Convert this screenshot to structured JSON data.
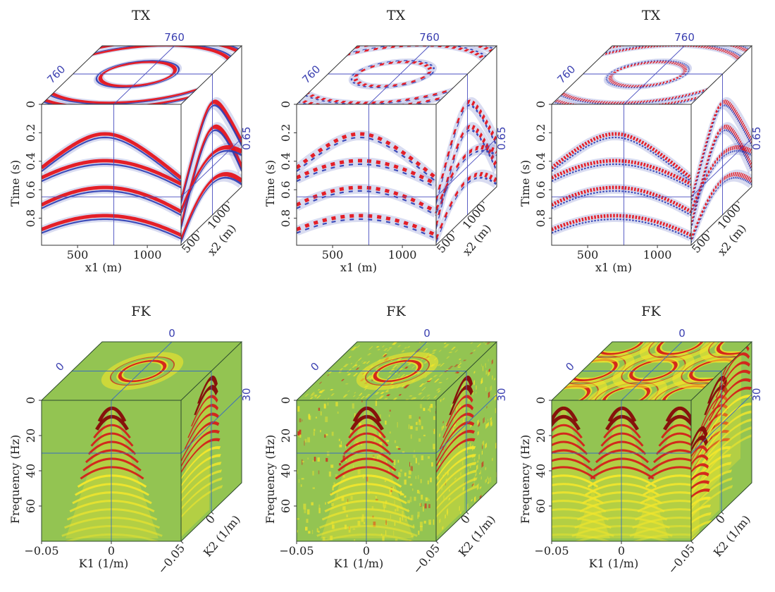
{
  "colors": {
    "tx_red": "#e5141c",
    "tx_blue": "#2c3cb2",
    "fk_green": "#93c452",
    "fk_yellow": "#f2e62c",
    "fk_red": "#d4201a",
    "fk_darkred": "#860808",
    "slice_tx": "#4a4fc0",
    "slice_fk": "#3a6cc0"
  },
  "chart_data": [
    {
      "type": "heatmap",
      "domain": "TX",
      "title": "TX",
      "xlabel": "x1 (m)",
      "ylabel": "Time (s)",
      "zlabel": "x2 (m)",
      "xlim": [
        242,
        1242
      ],
      "ylim": [
        0,
        0.99
      ],
      "zlim": [
        242,
        1242
      ],
      "xticks": [
        "500",
        "1000"
      ],
      "xtick_values": [
        500,
        1000
      ],
      "yticks": [
        "0",
        "0.2",
        "0.4",
        "0.6",
        "0.8"
      ],
      "ytick_values": [
        0,
        0.2,
        0.4,
        0.6,
        0.8
      ],
      "zticks": [
        "500",
        "1000"
      ],
      "ztick_values": [
        500,
        1000
      ],
      "slices": {
        "x1": 760,
        "x2": 760,
        "t": 0.65
      },
      "slice_labels": [
        "760",
        "760",
        "0.65"
      ],
      "variant": "clean"
    },
    {
      "type": "heatmap",
      "domain": "TX",
      "title": "TX",
      "xlabel": "x1 (m)",
      "ylabel": "Time (s)",
      "zlabel": "x2 (m)",
      "xlim": [
        242,
        1242
      ],
      "ylim": [
        0,
        0.99
      ],
      "zlim": [
        242,
        1242
      ],
      "xticks": [
        "500",
        "1000"
      ],
      "xtick_values": [
        500,
        1000
      ],
      "yticks": [
        "0",
        "0.2",
        "0.4",
        "0.6",
        "0.8"
      ],
      "ytick_values": [
        0,
        0.2,
        0.4,
        0.6,
        0.8
      ],
      "zticks": [
        "500",
        "1000"
      ],
      "ztick_values": [
        500,
        1000
      ],
      "slices": {
        "x1": 760,
        "x2": 760,
        "t": 0.65
      },
      "slice_labels": [
        "760",
        "760",
        "0.65"
      ],
      "variant": "decimated"
    },
    {
      "type": "heatmap",
      "domain": "TX",
      "title": "TX",
      "xlabel": "x1 (m)",
      "ylabel": "Time (s)",
      "zlabel": "x2 (m)",
      "xlim": [
        242,
        1242
      ],
      "ylim": [
        0,
        0.99
      ],
      "zlim": [
        242,
        1242
      ],
      "xticks": [
        "500",
        "1000"
      ],
      "xtick_values": [
        500,
        1000
      ],
      "yticks": [
        "0",
        "0.2",
        "0.4",
        "0.6",
        "0.8"
      ],
      "ytick_values": [
        0,
        0.2,
        0.4,
        0.6,
        0.8
      ],
      "zticks": [
        "500",
        "1000"
      ],
      "ztick_values": [
        500,
        1000
      ],
      "slices": {
        "x1": 760,
        "x2": 760,
        "t": 0.65
      },
      "slice_labels": [
        "760",
        "760",
        "0.65"
      ],
      "variant": "regular"
    },
    {
      "type": "heatmap",
      "domain": "FK",
      "title": "FK",
      "xlabel": "K1 (1/m)",
      "ylabel": "Frequency (Hz)",
      "zlabel": "K2 (1/m)",
      "xlim": [
        -0.05,
        0.05
      ],
      "ylim": [
        0,
        80
      ],
      "zlim": [
        -0.05,
        0.05
      ],
      "xticks": [
        "−0.05",
        "0"
      ],
      "xtick_values": [
        -0.05,
        0
      ],
      "yticks": [
        "0",
        "20",
        "40",
        "60"
      ],
      "ytick_values": [
        0,
        20,
        40,
        60
      ],
      "zticks": [
        "−0.05",
        "0"
      ],
      "ztick_values": [
        -0.05,
        0
      ],
      "slices": {
        "k1": 0,
        "k2": 0,
        "f": 30
      },
      "slice_labels": [
        "0",
        "0",
        "30"
      ],
      "variant": "clean"
    },
    {
      "type": "heatmap",
      "domain": "FK",
      "title": "FK",
      "xlabel": "K1 (1/m)",
      "ylabel": "Frequency (Hz)",
      "zlabel": "K2 (1/m)",
      "xlim": [
        -0.05,
        0.05
      ],
      "ylim": [
        0,
        80
      ],
      "zlim": [
        -0.05,
        0.05
      ],
      "xticks": [
        "−0.05",
        "0"
      ],
      "xtick_values": [
        -0.05,
        0
      ],
      "yticks": [
        "0",
        "20",
        "40",
        "60"
      ],
      "ytick_values": [
        0,
        20,
        40,
        60
      ],
      "zticks": [
        "−0.05",
        "0"
      ],
      "ztick_values": [
        -0.05,
        0
      ],
      "slices": {
        "k1": 0,
        "k2": 0,
        "f": 30
      },
      "slice_labels": [
        "0",
        "0",
        "30"
      ],
      "variant": "decimated"
    },
    {
      "type": "heatmap",
      "domain": "FK",
      "title": "FK",
      "xlabel": "K1 (1/m)",
      "ylabel": "Frequency (Hz)",
      "zlabel": "K2 (1/m)",
      "xlim": [
        -0.05,
        0.05
      ],
      "ylim": [
        0,
        80
      ],
      "zlim": [
        -0.05,
        0.05
      ],
      "xticks": [
        "−0.05",
        "0"
      ],
      "xtick_values": [
        -0.05,
        0
      ],
      "yticks": [
        "0",
        "20",
        "40",
        "60"
      ],
      "ytick_values": [
        0,
        20,
        40,
        60
      ],
      "zticks": [
        "−0.05",
        "0"
      ],
      "ztick_values": [
        -0.05,
        0
      ],
      "slices": {
        "k1": 0,
        "k2": 0,
        "f": 30
      },
      "slice_labels": [
        "0",
        "0",
        "30"
      ],
      "variant": "regular"
    }
  ]
}
